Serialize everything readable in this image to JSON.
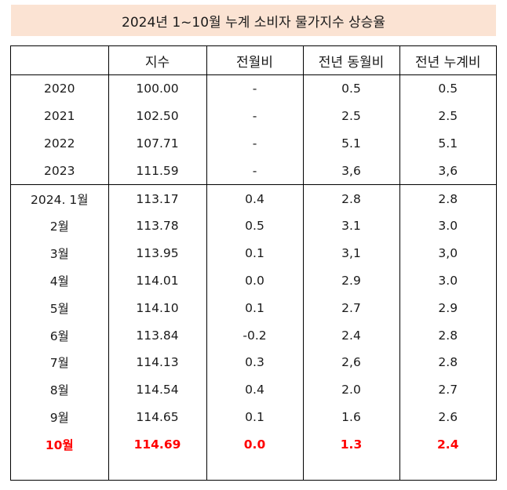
{
  "title": "2024년 1~10월 누계 소비자 물가지수 상승율",
  "headers": [
    "",
    "지수",
    "전월비",
    "전년 동월비",
    "전년 누계비"
  ],
  "rows": [
    {
      "label": "2020",
      "index": "100.00",
      "mom": "-",
      "yoy": "0.5",
      "ytd": "0.5"
    },
    {
      "label": "2021",
      "index": "102.50",
      "mom": "-",
      "yoy": "2.5",
      "ytd": "2.5"
    },
    {
      "label": "2022",
      "index": "107.71",
      "mom": "-",
      "yoy": "5.1",
      "ytd": "5.1"
    },
    {
      "label": "2023",
      "index": "111.59",
      "mom": "-",
      "yoy": "3,6",
      "ytd": "3,6"
    },
    {
      "label": "2024. 1월",
      "index": "113.17",
      "mom": "0.4",
      "yoy": "2.8",
      "ytd": "2.8"
    },
    {
      "label": "2월",
      "index": "113.78",
      "mom": "0.5",
      "yoy": "3.1",
      "ytd": "3.0"
    },
    {
      "label": "3월",
      "index": "113.95",
      "mom": "0.1",
      "yoy": "3,1",
      "ytd": "3,0"
    },
    {
      "label": "4월",
      "index": "114.01",
      "mom": "0.0",
      "yoy": "2.9",
      "ytd": "3.0"
    },
    {
      "label": "5월",
      "index": "114.10",
      "mom": "0.1",
      "yoy": "2.7",
      "ytd": "2.9"
    },
    {
      "label": "6월",
      "index": "113.84",
      "mom": "-0.2",
      "yoy": "2.4",
      "ytd": "2.8"
    },
    {
      "label": "7월",
      "index": "114.13",
      "mom": "0.3",
      "yoy": "2,6",
      "ytd": "2.8"
    },
    {
      "label": "8월",
      "index": "114.54",
      "mom": "0.4",
      "yoy": "2.0",
      "ytd": "2.7"
    },
    {
      "label": "9월",
      "index": "114.65",
      "mom": "0.1",
      "yoy": "1.6",
      "ytd": "2.6"
    },
    {
      "label": "10월",
      "index": "114.69",
      "mom": "0.0",
      "yoy": "1.3",
      "ytd": "2.4"
    }
  ],
  "highlight_color": "#ff0000",
  "title_background": "#fbe3d3"
}
